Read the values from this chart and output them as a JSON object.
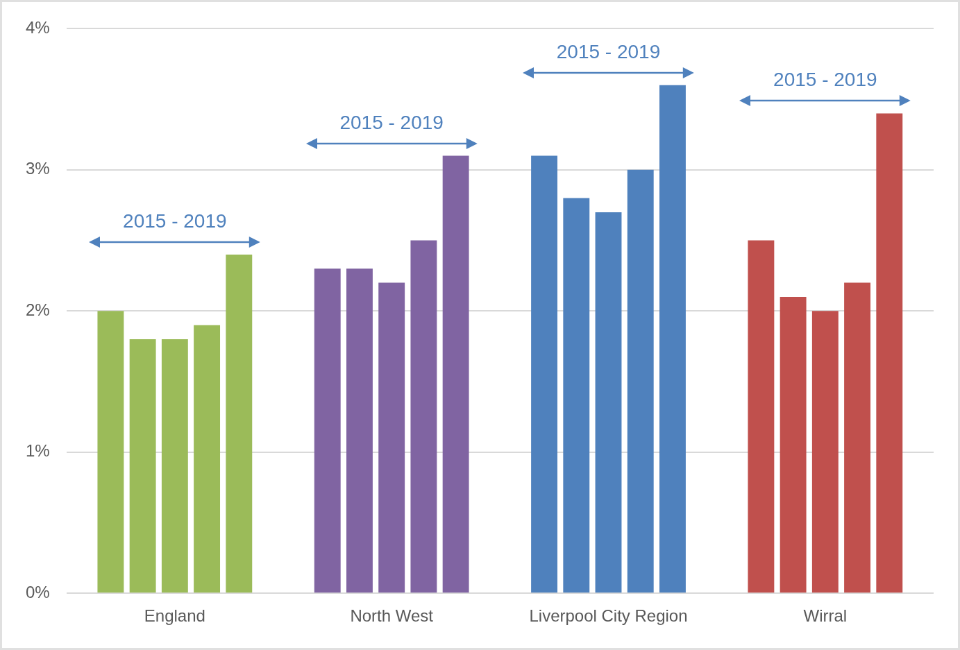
{
  "chart_data": {
    "type": "bar",
    "categories": [
      "England",
      "North West",
      "Liverpool City Region",
      "Wirral"
    ],
    "series": [
      {
        "colors": [
          "#9bbb59",
          "#8064a2",
          "#4f81bd",
          "#c0504d"
        ],
        "values": [
          2.0,
          2.3,
          3.1,
          2.5
        ]
      },
      {
        "colors": [
          "#9bbb59",
          "#8064a2",
          "#4f81bd",
          "#c0504d"
        ],
        "values": [
          1.8,
          2.3,
          2.8,
          2.1
        ]
      },
      {
        "colors": [
          "#9bbb59",
          "#8064a2",
          "#4f81bd",
          "#c0504d"
        ],
        "values": [
          1.8,
          2.2,
          2.7,
          2.0
        ]
      },
      {
        "colors": [
          "#9bbb59",
          "#8064a2",
          "#4f81bd",
          "#c0504d"
        ],
        "values": [
          1.9,
          2.5,
          3.0,
          2.2
        ]
      },
      {
        "colors": [
          "#9bbb59",
          "#8064a2",
          "#4f81bd",
          "#c0504d"
        ],
        "values": [
          2.4,
          3.1,
          3.6,
          3.4
        ]
      }
    ],
    "ylim": [
      0,
      4
    ],
    "yticks": [
      {
        "value": 0,
        "label": "0%"
      },
      {
        "value": 1,
        "label": "1%"
      },
      {
        "value": 2,
        "label": "2%"
      },
      {
        "value": 3,
        "label": "3%"
      },
      {
        "value": 4,
        "label": "4%"
      }
    ],
    "grid": "y",
    "legend": false,
    "annotations": [
      "2015 - 2019",
      "2015 - 2019",
      "2015 - 2019",
      "2015 - 2019"
    ]
  }
}
